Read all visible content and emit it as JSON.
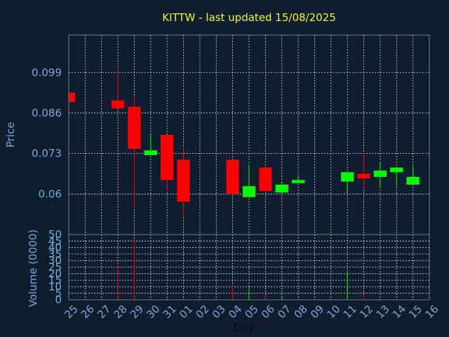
{
  "chart_data": {
    "type": "candlestick",
    "title": "KITTW - last updated 15/08/2025",
    "ylabel": "Price",
    "volume_label": "Volume (0000)",
    "xlabel": "Day",
    "ylim": [
      0.047,
      0.111
    ],
    "yticks": [
      "0.099",
      "0.086",
      "0.073",
      "0.06"
    ],
    "volume_ylim": [
      0,
      50
    ],
    "volume_ticks": [
      "0",
      "5",
      "10",
      "15",
      "20",
      "25",
      "30",
      "35",
      "40",
      "45",
      "50"
    ],
    "grid": true,
    "colors": {
      "up": "#00ff00",
      "down": "#ff0000",
      "background": "#0e1e30",
      "title": "#f5f51e",
      "axis_text": "#7da7d0"
    },
    "x_labels": [
      "25",
      "26",
      "27",
      "28",
      "29",
      "30",
      "31",
      "01",
      "02",
      "03",
      "04",
      "05",
      "06",
      "07",
      "08",
      "09",
      "10",
      "11",
      "12",
      "13",
      "14",
      "15",
      "16"
    ],
    "candles": [
      {
        "x": "25",
        "open": 0.0925,
        "close": 0.0895,
        "high": 0.0925,
        "low": 0.0895,
        "volume": 0
      },
      {
        "x": "28",
        "open": 0.09,
        "close": 0.0875,
        "high": 0.1005,
        "low": 0.0875,
        "volume": 26
      },
      {
        "x": "29",
        "open": 0.088,
        "close": 0.0745,
        "high": 0.0915,
        "low": 0.0555,
        "volume": 47
      },
      {
        "x": "30",
        "open": 0.0725,
        "close": 0.074,
        "high": 0.0795,
        "low": 0.0725,
        "volume": 0
      },
      {
        "x": "31",
        "open": 0.079,
        "close": 0.0645,
        "high": 0.079,
        "low": 0.061,
        "volume": 2
      },
      {
        "x": "01",
        "open": 0.071,
        "close": 0.0575,
        "high": 0.075,
        "low": 0.0525,
        "volume": 0
      },
      {
        "x": "04",
        "open": 0.071,
        "close": 0.06,
        "high": 0.071,
        "low": 0.06,
        "volume": 12
      },
      {
        "x": "05",
        "open": 0.059,
        "close": 0.0625,
        "high": 0.0695,
        "low": 0.059,
        "volume": 10
      },
      {
        "x": "06",
        "open": 0.0685,
        "close": 0.061,
        "high": 0.0685,
        "low": 0.061,
        "volume": 4
      },
      {
        "x": "07",
        "open": 0.0605,
        "close": 0.063,
        "high": 0.064,
        "low": 0.0605,
        "volume": 3
      },
      {
        "x": "08",
        "open": 0.0635,
        "close": 0.0645,
        "high": 0.066,
        "low": 0.0635,
        "volume": 0
      },
      {
        "x": "11",
        "open": 0.064,
        "close": 0.067,
        "high": 0.067,
        "low": 0.06,
        "volume": 22
      },
      {
        "x": "12",
        "open": 0.0665,
        "close": 0.065,
        "high": 0.073,
        "low": 0.062,
        "volume": 4
      },
      {
        "x": "13",
        "open": 0.0655,
        "close": 0.0675,
        "high": 0.07,
        "low": 0.062,
        "volume": 0
      },
      {
        "x": "14",
        "open": 0.067,
        "close": 0.0685,
        "high": 0.0685,
        "low": 0.0625,
        "volume": 0
      },
      {
        "x": "15",
        "open": 0.063,
        "close": 0.0655,
        "high": 0.069,
        "low": 0.063,
        "volume": 0
      }
    ]
  }
}
